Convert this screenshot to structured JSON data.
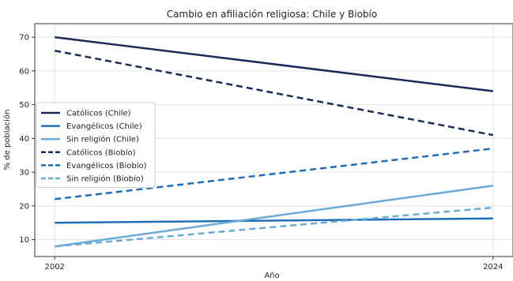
{
  "chart_data": {
    "type": "line",
    "title": "Cambio en afiliación religiosa: Chile y Biobío",
    "xlabel": "Año",
    "ylabel": "% de población",
    "x": [
      2002,
      2024
    ],
    "xlim": [
      2001,
      2025
    ],
    "ylim": [
      5,
      74
    ],
    "yticks": [
      10,
      20,
      30,
      40,
      50,
      60,
      70
    ],
    "grid": true,
    "legend_position": "center-left",
    "series": [
      {
        "name": "Católicos (Chile)",
        "values": [
          70,
          54
        ],
        "color": "#1a2a5a",
        "style": "solid"
      },
      {
        "name": "Evangélicos (Chile)",
        "values": [
          15,
          16.3
        ],
        "color": "#1f6fb8",
        "style": "solid"
      },
      {
        "name": "Sin religión (Chile)",
        "values": [
          8,
          26
        ],
        "color": "#6aaad6",
        "style": "solid"
      },
      {
        "name": "Católicos (Biobío)",
        "values": [
          66,
          41
        ],
        "color": "#1a2a5a",
        "style": "dashed"
      },
      {
        "name": "Evangélicos (Biobío)",
        "values": [
          22,
          37
        ],
        "color": "#1f6fb8",
        "style": "dashed"
      },
      {
        "name": "Sin religión (Biobío)",
        "values": [
          8,
          19.5
        ],
        "color": "#6aaad6",
        "style": "dashed"
      }
    ]
  }
}
